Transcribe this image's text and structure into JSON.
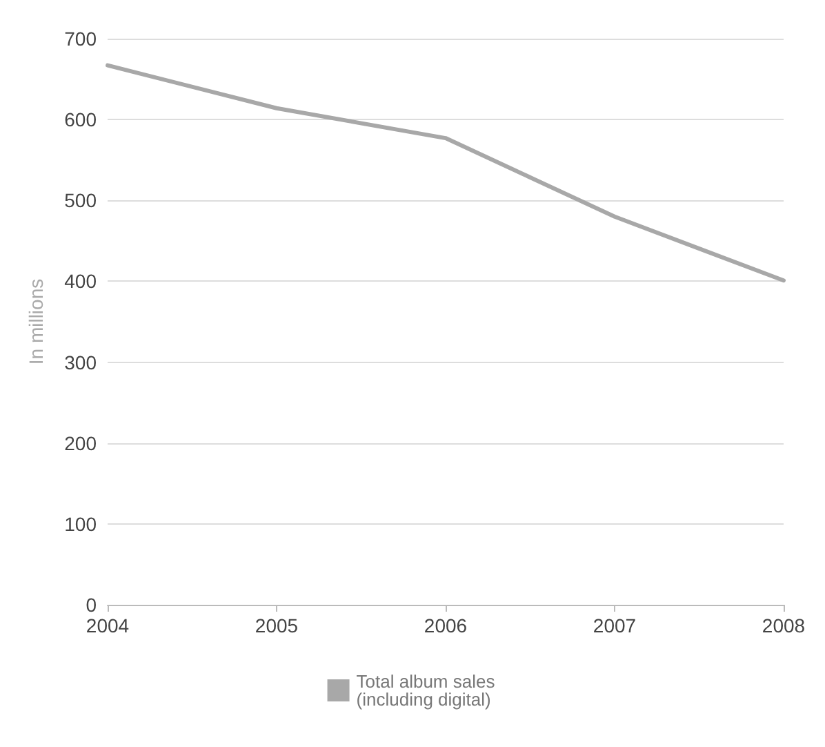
{
  "chart_data": {
    "type": "line",
    "ylabel": "In millions",
    "x": [
      2004,
      2005,
      2006,
      2007,
      2008
    ],
    "series": [
      {
        "name": "Total album sales\n(including digital)",
        "color": "#a8a8a8",
        "values": [
          667,
          614,
          577,
          480,
          401
        ]
      }
    ],
    "xlim": [
      2004,
      2008
    ],
    "xticks": [
      2004,
      2005,
      2006,
      2007,
      2008
    ],
    "ylim": [
      0,
      700
    ],
    "yticks": [
      0,
      100,
      200,
      300,
      400,
      500,
      600,
      700
    ],
    "grid": "y",
    "legend": "bottom",
    "marker": "none",
    "line_style": "solid"
  }
}
